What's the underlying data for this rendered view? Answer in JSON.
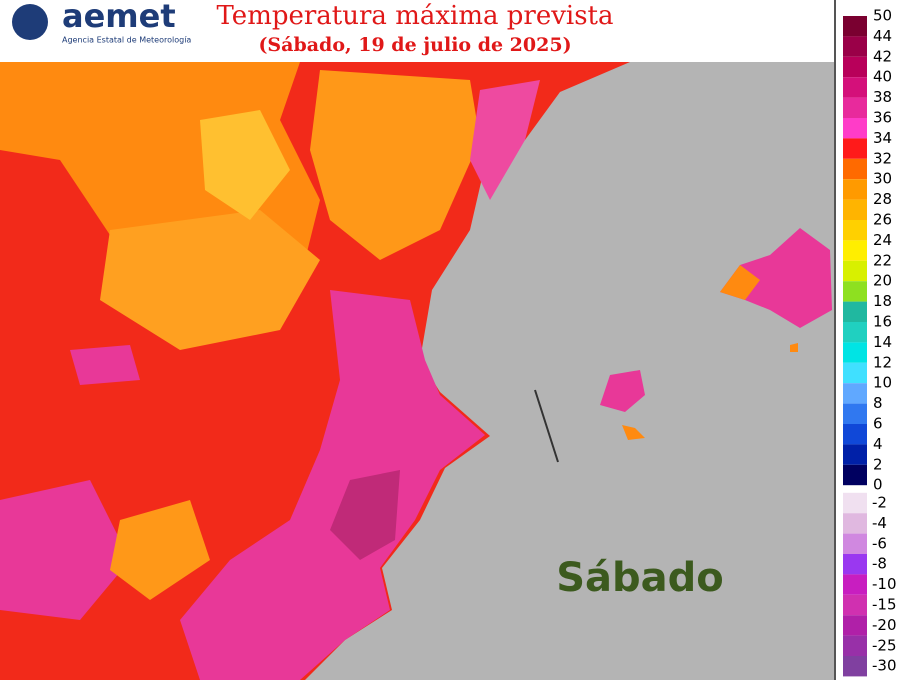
{
  "header": {
    "logo": "aemet",
    "agency": "Agencia Estatal de Meteorología",
    "title": "Temperatura máxima prevista",
    "subtitle": "(Sábado, 19 de julio de 2025)"
  },
  "map": {
    "day_label": "Sábado"
  },
  "legend": {
    "warm": {
      "levels": [
        50,
        44,
        42,
        40,
        38,
        36,
        34,
        32,
        30,
        28,
        26,
        24,
        22,
        20,
        18,
        16,
        14,
        12,
        10,
        8,
        6,
        4,
        2,
        0
      ],
      "colors": [
        "#7a0030",
        "#9a0048",
        "#b8005a",
        "#d4107a",
        "#e82a9c",
        "#ff3cc8",
        "#ff1a1a",
        "#ff6a00",
        "#ff9a00",
        "#ffb400",
        "#ffd000",
        "#ffee00",
        "#d8f000",
        "#8ee020",
        "#20b8a0",
        "#20d0c0",
        "#00e4e4",
        "#40e0ff",
        "#60a8ff",
        "#3078f0",
        "#1048d8",
        "#0020a8",
        "#000060"
      ]
    },
    "cold": {
      "levels": [
        -2,
        -4,
        -6,
        -8,
        -10,
        -15,
        -20,
        -25,
        -30
      ],
      "colors": [
        "#f0e0f0",
        "#e0b8e0",
        "#d088e0",
        "#9a38f0",
        "#c81ec0",
        "#d030b0",
        "#b020a8",
        "#9830a8",
        "#8040a0"
      ]
    }
  }
}
